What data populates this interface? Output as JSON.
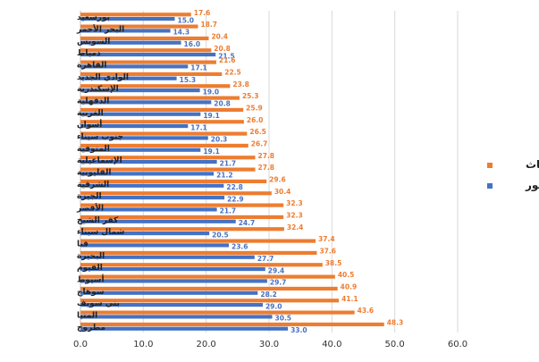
{
  "chart_data": {
    "type": "bar",
    "orientation": "horizontal",
    "categories": [
      "بورسعيد",
      "البحر الأحمر",
      "السويس",
      "دمياط",
      "القاهرة",
      "الوادي الجديد",
      "الإسكندرية",
      "الدقهلية",
      "الغربية",
      "أسوان",
      "جنوب سيناء",
      "المنوفية",
      "الإسماعيلية",
      "القليوبية",
      "الشرقية",
      "الجيزة",
      "الأقصر",
      "كفر الشيخ",
      "شمال سيناء",
      "قنا",
      "البحيرة",
      "الفيوم",
      "أسيوط",
      "سوهاج",
      "بني سويف",
      "المنيا",
      "مطروح"
    ],
    "series": [
      {
        "name": "إناث",
        "color": "#ED7D31",
        "values": [
          17.6,
          18.7,
          20.4,
          20.8,
          21.6,
          22.5,
          23.8,
          25.3,
          25.9,
          26.0,
          26.5,
          26.7,
          27.8,
          27.8,
          29.6,
          30.4,
          32.3,
          32.3,
          32.4,
          37.4,
          37.6,
          38.5,
          40.5,
          40.9,
          41.1,
          43.6,
          48.3
        ]
      },
      {
        "name": "ذكور",
        "color": "#4472C4",
        "values": [
          15.0,
          14.3,
          16.0,
          21.5,
          17.1,
          15.3,
          19.0,
          20.8,
          19.1,
          17.1,
          20.3,
          19.1,
          21.7,
          21.2,
          22.8,
          22.9,
          21.7,
          24.7,
          20.5,
          23.6,
          27.7,
          29.4,
          29.7,
          28.2,
          29.0,
          30.5,
          33.0
        ]
      }
    ],
    "xlim": [
      0,
      60
    ],
    "xticks": [
      "0.0",
      "10.0",
      "20.0",
      "30.0",
      "40.0",
      "50.0",
      "60.0"
    ],
    "grid": true,
    "legend_position": "right"
  }
}
